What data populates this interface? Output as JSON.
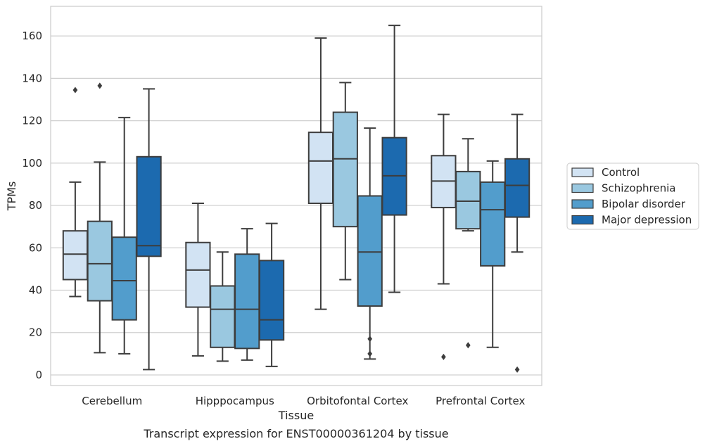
{
  "chart_data": {
    "type": "boxplot",
    "title": "",
    "caption": "Transcript expression for ENST00000361204 by tissue",
    "xlabel": "Tissue",
    "ylabel": "TPMs",
    "ylim": [
      -5,
      174
    ],
    "yticks": [
      0,
      20,
      40,
      60,
      80,
      100,
      120,
      140,
      160
    ],
    "grid": "horizontal",
    "legend_position": "right",
    "categories": [
      "Cerebellum",
      "Hipppocampus",
      "Orbitofontal Cortex",
      "Prefrontal Cortex"
    ],
    "series": [
      {
        "name": "Control",
        "color": "#d2e3f3",
        "boxes": [
          {
            "whisker_low": 37,
            "q1": 45,
            "median": 57,
            "q3": 68,
            "whisker_high": 91,
            "outliers": [
              134.5
            ]
          },
          {
            "whisker_low": 9,
            "q1": 32,
            "median": 49.5,
            "q3": 62.5,
            "whisker_high": 81,
            "outliers": []
          },
          {
            "whisker_low": 31,
            "q1": 81,
            "median": 101,
            "q3": 114.5,
            "whisker_high": 159,
            "outliers": []
          },
          {
            "whisker_low": 43,
            "q1": 79,
            "median": 91.5,
            "q3": 103.5,
            "whisker_high": 123,
            "outliers": [
              8.5
            ]
          }
        ]
      },
      {
        "name": "Schizophrenia",
        "color": "#9ac8e0",
        "boxes": [
          {
            "whisker_low": 10.5,
            "q1": 35,
            "median": 52.5,
            "q3": 72.5,
            "whisker_high": 100.5,
            "outliers": [
              136.5
            ]
          },
          {
            "whisker_low": 6.5,
            "q1": 13,
            "median": 31,
            "q3": 42,
            "whisker_high": 58,
            "outliers": []
          },
          {
            "whisker_low": 45,
            "q1": 70,
            "median": 102,
            "q3": 124,
            "whisker_high": 138,
            "outliers": []
          },
          {
            "whisker_low": 68,
            "q1": 69,
            "median": 82,
            "q3": 96,
            "whisker_high": 111.5,
            "outliers": [
              14
            ]
          }
        ]
      },
      {
        "name": "Bipolar disorder",
        "color": "#529dcc",
        "boxes": [
          {
            "whisker_low": 10,
            "q1": 26,
            "median": 44.5,
            "q3": 65,
            "whisker_high": 121.5,
            "outliers": []
          },
          {
            "whisker_low": 7,
            "q1": 12.5,
            "median": 31,
            "q3": 57,
            "whisker_high": 69,
            "outliers": []
          },
          {
            "whisker_low": 7.5,
            "q1": 32.5,
            "median": 58,
            "q3": 84.5,
            "whisker_high": 116.5,
            "outliers": [
              17,
              10
            ]
          },
          {
            "whisker_low": 13,
            "q1": 51.5,
            "median": 78,
            "q3": 91,
            "whisker_high": 101,
            "outliers": []
          }
        ]
      },
      {
        "name": "Major depression",
        "color": "#1c6aaf",
        "boxes": [
          {
            "whisker_low": 2.5,
            "q1": 56,
            "median": 61,
            "q3": 103,
            "whisker_high": 135,
            "outliers": []
          },
          {
            "whisker_low": 4,
            "q1": 16.5,
            "median": 26,
            "q3": 54,
            "whisker_high": 71.5,
            "outliers": []
          },
          {
            "whisker_low": 39,
            "q1": 75.5,
            "median": 94,
            "q3": 112,
            "whisker_high": 165,
            "outliers": []
          },
          {
            "whisker_low": 58,
            "q1": 74.5,
            "median": 89.5,
            "q3": 102,
            "whisker_high": 123,
            "outliers": [
              2.5
            ]
          }
        ]
      }
    ]
  }
}
